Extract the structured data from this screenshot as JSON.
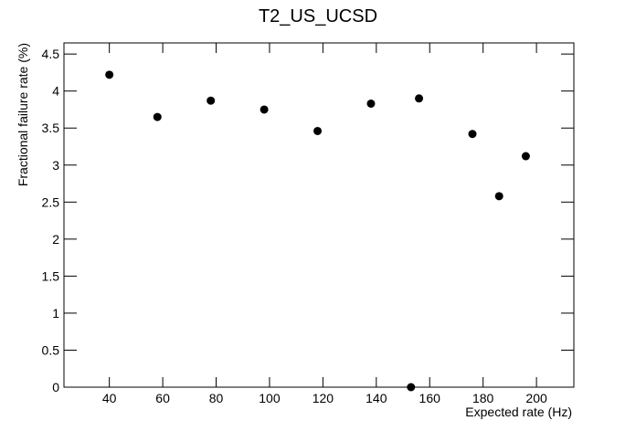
{
  "chart_data": {
    "type": "scatter",
    "title": "T2_US_UCSD",
    "x_label": "Expected rate (Hz)",
    "y_label": "Fractional failure rate (%)",
    "series": [
      {
        "color": "#000000",
        "x": [
          40,
          58,
          78,
          98,
          118,
          138,
          156,
          153,
          176,
          186,
          196
        ],
        "values": [
          4.22,
          3.65,
          3.87,
          3.75,
          3.46,
          3.83,
          3.9,
          0,
          3.42,
          2.58,
          3.12
        ]
      }
    ],
    "xlim": [
      23,
      214
    ],
    "xticks": [
      40,
      60,
      80,
      100,
      120,
      140,
      160,
      180,
      200
    ],
    "ylim": [
      0,
      4.65
    ],
    "yticks": [
      0,
      0.5,
      1,
      1.5,
      2,
      2.5,
      3,
      3.5,
      4,
      4.5
    ]
  }
}
